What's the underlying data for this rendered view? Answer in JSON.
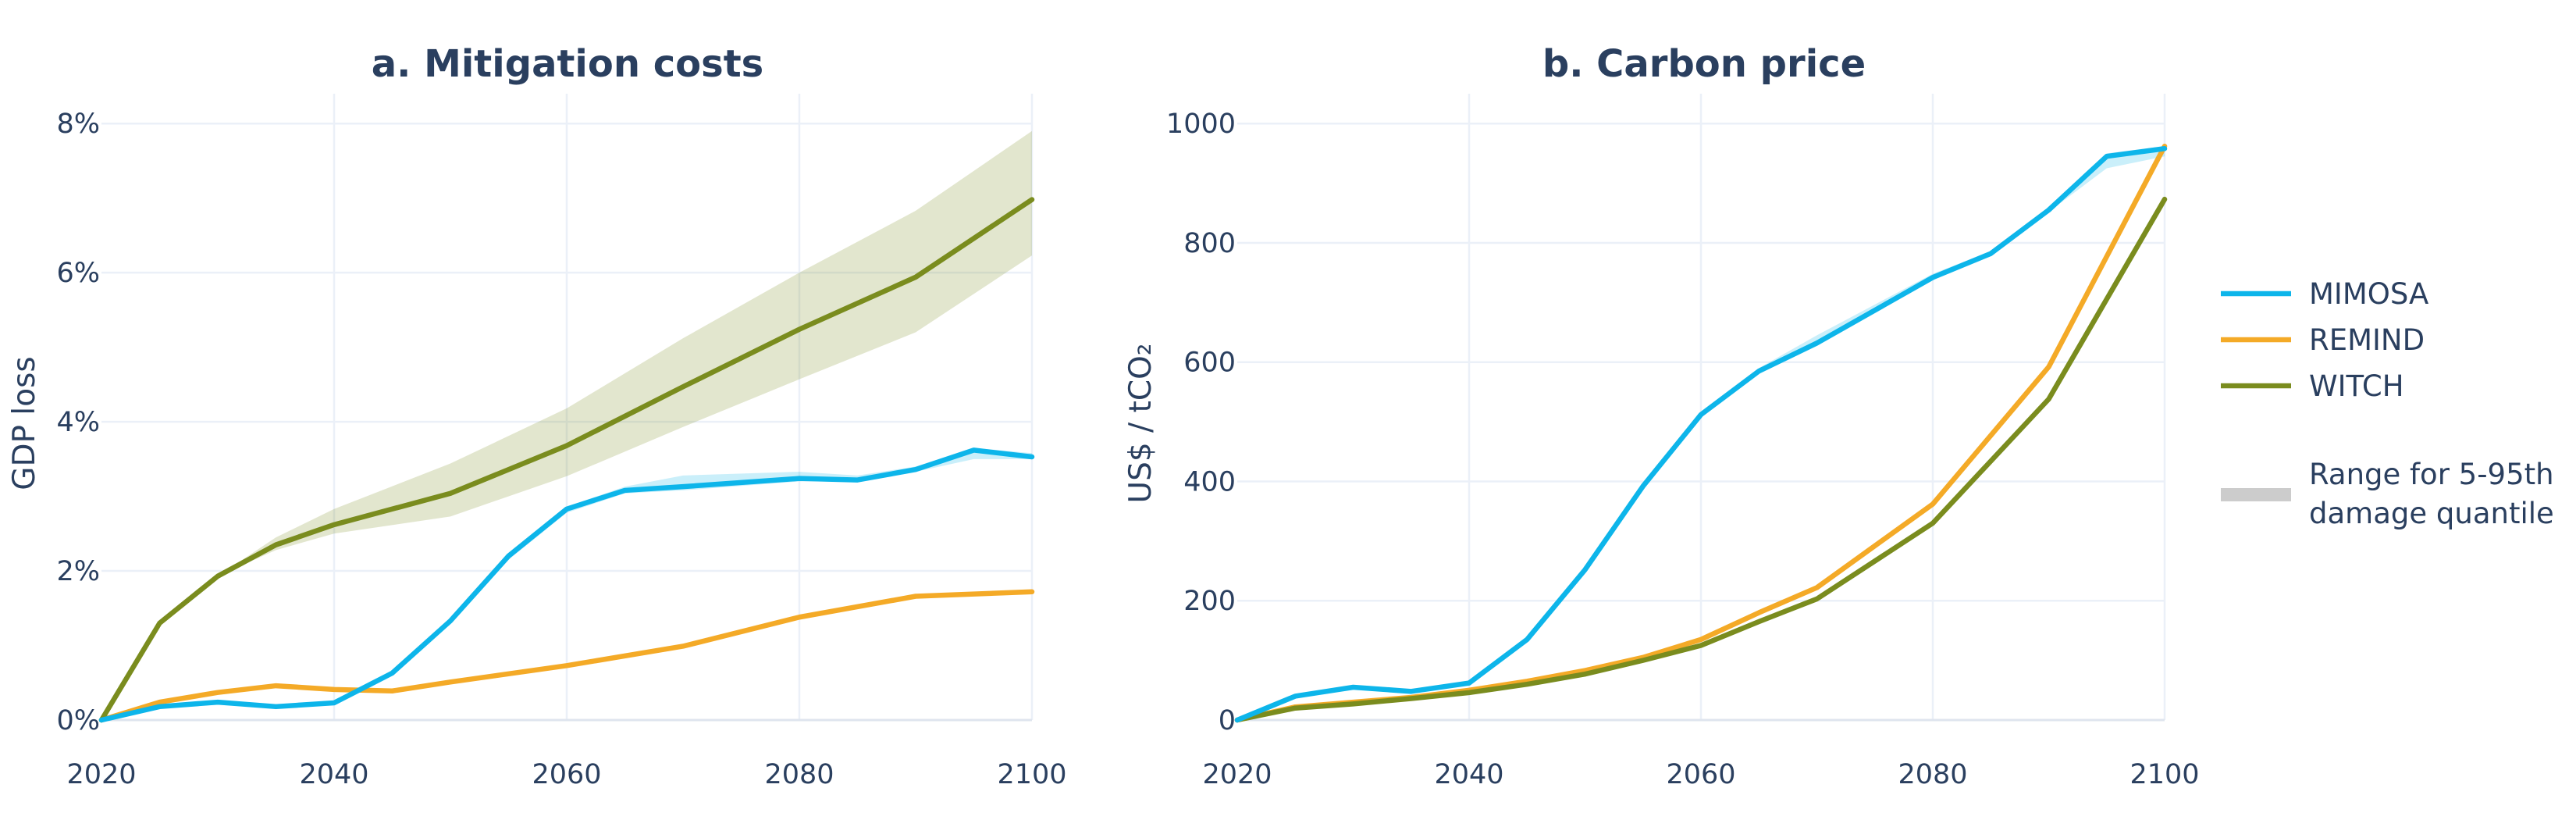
{
  "colors": {
    "MIMOSA": "#0db5ea",
    "REMIND": "#f4aa27",
    "WITCH": "#7a8c1e",
    "band_MIMOSA": "#0db5ea",
    "band_WITCH": "#7a8c1e",
    "legend_band": "#cccccc"
  },
  "legend": {
    "items": [
      {
        "name": "MIMOSA"
      },
      {
        "name": "REMIND"
      },
      {
        "name": "WITCH"
      }
    ],
    "band_label_line1": "Range for 5-95th",
    "band_label_line2": "damage quantile"
  },
  "chart_data": [
    {
      "type": "line",
      "title": "a. Mitigation costs",
      "xlabel": "",
      "ylabel": "GDP loss",
      "xlim": [
        2020,
        2100
      ],
      "ylim": [
        0,
        8.4
      ],
      "xticks": [
        2020,
        2040,
        2060,
        2080,
        2100
      ],
      "xtick_labels": [
        "2020",
        "2040",
        "2060",
        "2080",
        "2100"
      ],
      "yticks": [
        0,
        2,
        4,
        6,
        8
      ],
      "ytick_labels": [
        "0%",
        "2%",
        "4%",
        "6%",
        "8%"
      ],
      "grid": true,
      "series": [
        {
          "name": "MIMOSA",
          "x": [
            2020,
            2025,
            2030,
            2035,
            2040,
            2045,
            2050,
            2055,
            2060,
            2065,
            2070,
            2080,
            2085,
            2090,
            2095,
            2100
          ],
          "y": [
            0.0,
            0.18,
            0.24,
            0.18,
            0.23,
            0.63,
            1.33,
            2.2,
            2.83,
            3.08,
            3.13,
            3.24,
            3.22,
            3.36,
            3.62,
            3.53
          ],
          "band_low": [
            0.0,
            0.18,
            0.24,
            0.18,
            0.23,
            0.6,
            1.3,
            2.15,
            2.78,
            3.04,
            3.08,
            3.2,
            3.2,
            3.33,
            3.5,
            3.5
          ],
          "band_high": [
            0.0,
            0.18,
            0.24,
            0.18,
            0.23,
            0.65,
            1.36,
            2.23,
            2.86,
            3.13,
            3.28,
            3.33,
            3.28,
            3.4,
            3.65,
            3.58
          ]
        },
        {
          "name": "REMIND",
          "x": [
            2020,
            2025,
            2030,
            2035,
            2040,
            2045,
            2050,
            2060,
            2070,
            2080,
            2090,
            2100
          ],
          "y": [
            0.0,
            0.24,
            0.37,
            0.46,
            0.41,
            0.39,
            0.51,
            0.73,
            0.99,
            1.38,
            1.66,
            1.72
          ]
        },
        {
          "name": "WITCH",
          "x": [
            2020,
            2025,
            2030,
            2035,
            2040,
            2050,
            2060,
            2070,
            2080,
            2090,
            2100
          ],
          "y": [
            0.0,
            1.3,
            1.93,
            2.35,
            2.62,
            3.04,
            3.68,
            4.47,
            5.24,
            5.94,
            6.98
          ],
          "band_low": [
            0.0,
            1.3,
            1.93,
            2.28,
            2.5,
            2.73,
            3.27,
            3.93,
            4.57,
            5.2,
            6.23
          ],
          "band_high": [
            0.0,
            1.3,
            1.93,
            2.45,
            2.83,
            3.44,
            4.18,
            5.12,
            6.0,
            6.83,
            7.9
          ]
        }
      ]
    },
    {
      "type": "line",
      "title": "b. Carbon price",
      "xlabel": "",
      "ylabel": "US$ / tCO₂",
      "xlim": [
        2020,
        2100
      ],
      "ylim": [
        0,
        1050
      ],
      "xticks": [
        2020,
        2040,
        2060,
        2080,
        2100
      ],
      "xtick_labels": [
        "2020",
        "2040",
        "2060",
        "2080",
        "2100"
      ],
      "yticks": [
        0,
        200,
        400,
        600,
        800,
        1000
      ],
      "ytick_labels": [
        "0",
        "200",
        "400",
        "600",
        "800",
        "1000"
      ],
      "grid": true,
      "series": [
        {
          "name": "MIMOSA",
          "x": [
            2020,
            2025,
            2030,
            2035,
            2040,
            2045,
            2050,
            2055,
            2060,
            2065,
            2070,
            2080,
            2085,
            2090,
            2095,
            2100
          ],
          "y": [
            0,
            40,
            55,
            48,
            62,
            135,
            252,
            392,
            512,
            585,
            632,
            742,
            782,
            855,
            945,
            958
          ],
          "band_low": [
            0,
            40,
            55,
            48,
            62,
            133,
            250,
            390,
            510,
            583,
            628,
            738,
            780,
            852,
            925,
            945
          ],
          "band_high": [
            0,
            40,
            55,
            48,
            62,
            138,
            255,
            395,
            515,
            590,
            645,
            748,
            786,
            860,
            950,
            962
          ]
        },
        {
          "name": "REMIND",
          "x": [
            2020,
            2025,
            2030,
            2035,
            2040,
            2045,
            2050,
            2055,
            2060,
            2065,
            2070,
            2080,
            2090,
            2100
          ],
          "y": [
            0,
            22,
            30,
            38,
            50,
            65,
            83,
            105,
            135,
            180,
            222,
            362,
            592,
            962
          ]
        },
        {
          "name": "WITCH",
          "x": [
            2020,
            2025,
            2030,
            2035,
            2040,
            2045,
            2050,
            2055,
            2060,
            2065,
            2070,
            2080,
            2090,
            2100
          ],
          "y": [
            0,
            20,
            27,
            36,
            46,
            60,
            77,
            100,
            125,
            165,
            203,
            330,
            538,
            873
          ]
        }
      ]
    }
  ]
}
